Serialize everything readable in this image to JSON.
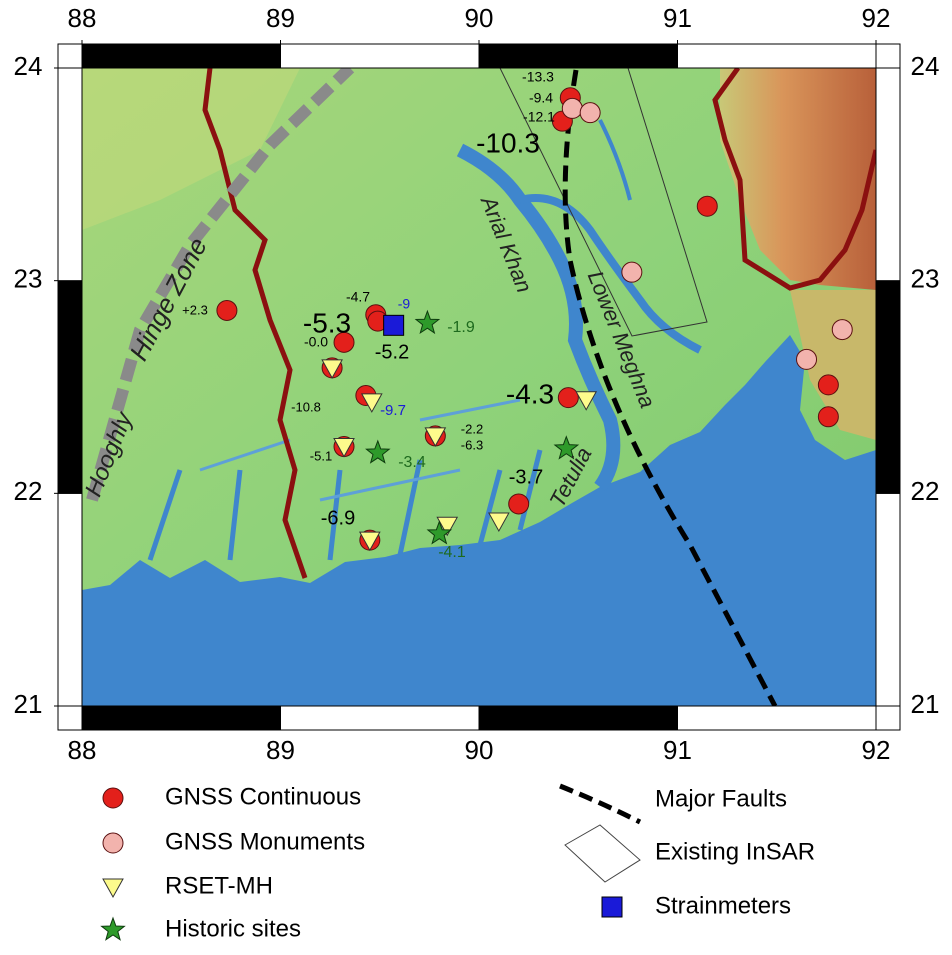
{
  "map": {
    "xlim": [
      88,
      92
    ],
    "ylim": [
      21,
      24
    ],
    "xticks": [
      88,
      89,
      90,
      91,
      92
    ],
    "yticks": [
      21,
      22,
      23,
      24
    ],
    "region_labels": [
      "Hinge Zone",
      "Hooghly",
      "Arial Khan",
      "Lower Meghna",
      "Tetulia"
    ],
    "annotations": [
      "-13.3",
      "-9.4",
      "-12.1",
      "-10.3",
      "+2.3",
      "-4.7",
      "-5.3",
      "-9",
      "-1.9",
      "-0.0",
      "-5.2",
      "-10.8",
      "-9.7",
      "-2.2",
      "-6.3",
      "-5.1",
      "-3.4",
      "-4.3",
      "-3.7",
      "-6.9",
      "-4.1"
    ],
    "legend": [
      {
        "label": "GNSS Continuous",
        "color": "#e3201b",
        "points": [
          [
            90.46,
            23.86
          ],
          [
            90.42,
            23.75
          ],
          [
            91.15,
            23.35
          ],
          [
            88.73,
            22.86
          ],
          [
            89.48,
            22.84
          ],
          [
            89.49,
            22.81
          ],
          [
            89.32,
            22.71
          ],
          [
            89.43,
            22.46
          ],
          [
            90.45,
            22.45
          ],
          [
            90.2,
            21.95
          ],
          [
            91.76,
            22.51
          ],
          [
            91.76,
            22.36
          ],
          [
            89.45,
            21.78
          ],
          [
            89.26,
            22.59
          ],
          [
            89.32,
            22.22
          ],
          [
            89.78,
            22.27
          ]
        ]
      },
      {
        "label": "GNSS Monuments",
        "color": "#f2b3ad",
        "points": [
          [
            90.47,
            23.81
          ],
          [
            90.56,
            23.79
          ],
          [
            90.77,
            23.04
          ],
          [
            91.83,
            22.77
          ],
          [
            91.65,
            22.63
          ]
        ]
      },
      {
        "label": "RSET-MH",
        "color": "#fdfb8c",
        "points": [
          [
            89.26,
            22.59
          ],
          [
            89.32,
            22.22
          ],
          [
            89.78,
            22.27
          ],
          [
            89.46,
            22.43
          ],
          [
            90.54,
            22.44
          ],
          [
            89.84,
            21.85
          ],
          [
            90.1,
            21.87
          ],
          [
            89.45,
            21.78
          ]
        ]
      },
      {
        "label": "Historic sites",
        "color": "#2e9a2a",
        "points": [
          [
            89.74,
            22.8
          ],
          [
            89.49,
            22.19
          ],
          [
            90.44,
            22.21
          ],
          [
            89.8,
            21.81
          ]
        ]
      },
      {
        "label": "Major Faults",
        "color": "#000000"
      },
      {
        "label": "Existing InSAR",
        "color": "#444444"
      },
      {
        "label": "Strainmeters",
        "color": "#1a1ad8",
        "points": [
          [
            89.57,
            22.79
          ]
        ]
      }
    ]
  }
}
